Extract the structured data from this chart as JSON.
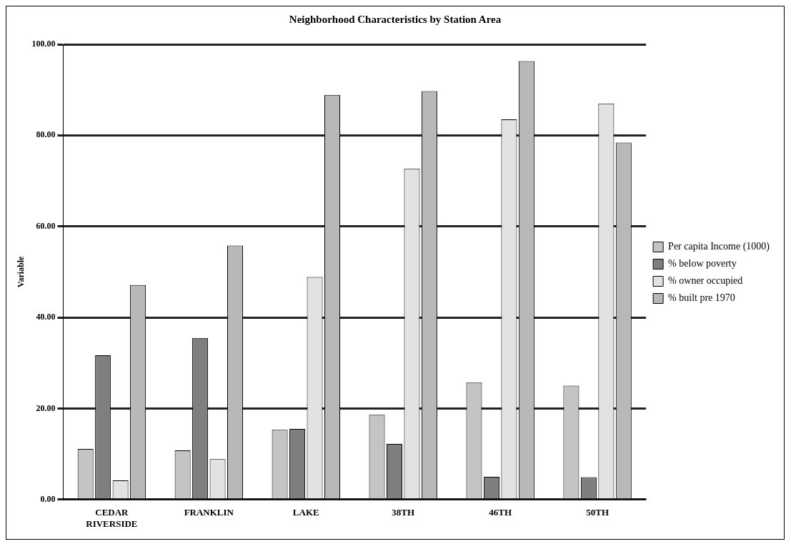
{
  "chart_data": {
    "type": "bar",
    "title": "Neighborhood Characteristics by Station Area",
    "ylabel": "Variable",
    "categories": [
      "CEDAR RIVERSIDE",
      "FRANKLIN",
      "LAKE",
      "38TH",
      "46TH",
      "50TH"
    ],
    "series": [
      {
        "name": "Per capita Income (1000)",
        "color": "#c4c4c4",
        "values": [
          11.1,
          10.8,
          15.3,
          18.6,
          25.7,
          25.0
        ]
      },
      {
        "name": "% below poverty",
        "color": "#7f7f7f",
        "values": [
          31.7,
          35.5,
          15.5,
          12.2,
          5.0,
          4.9
        ]
      },
      {
        "name": "% owner occupied",
        "color": "#e2e2e2",
        "values": [
          4.2,
          8.9,
          48.9,
          72.7,
          83.5,
          87.0
        ]
      },
      {
        "name": "% built pre 1970",
        "color": "#b8b8b8",
        "values": [
          47.1,
          55.8,
          88.9,
          89.7,
          96.3,
          78.4
        ]
      }
    ],
    "ylim": [
      0,
      100
    ],
    "yticks": [
      {
        "value": 0,
        "label": "0.00"
      },
      {
        "value": 20,
        "label": "20.00"
      },
      {
        "value": 40,
        "label": "40.00"
      },
      {
        "value": 60,
        "label": "60.00"
      },
      {
        "value": 80,
        "label": "80.00"
      },
      {
        "value": 100,
        "label": "100.00"
      }
    ],
    "grid": "y",
    "legend": "right"
  }
}
